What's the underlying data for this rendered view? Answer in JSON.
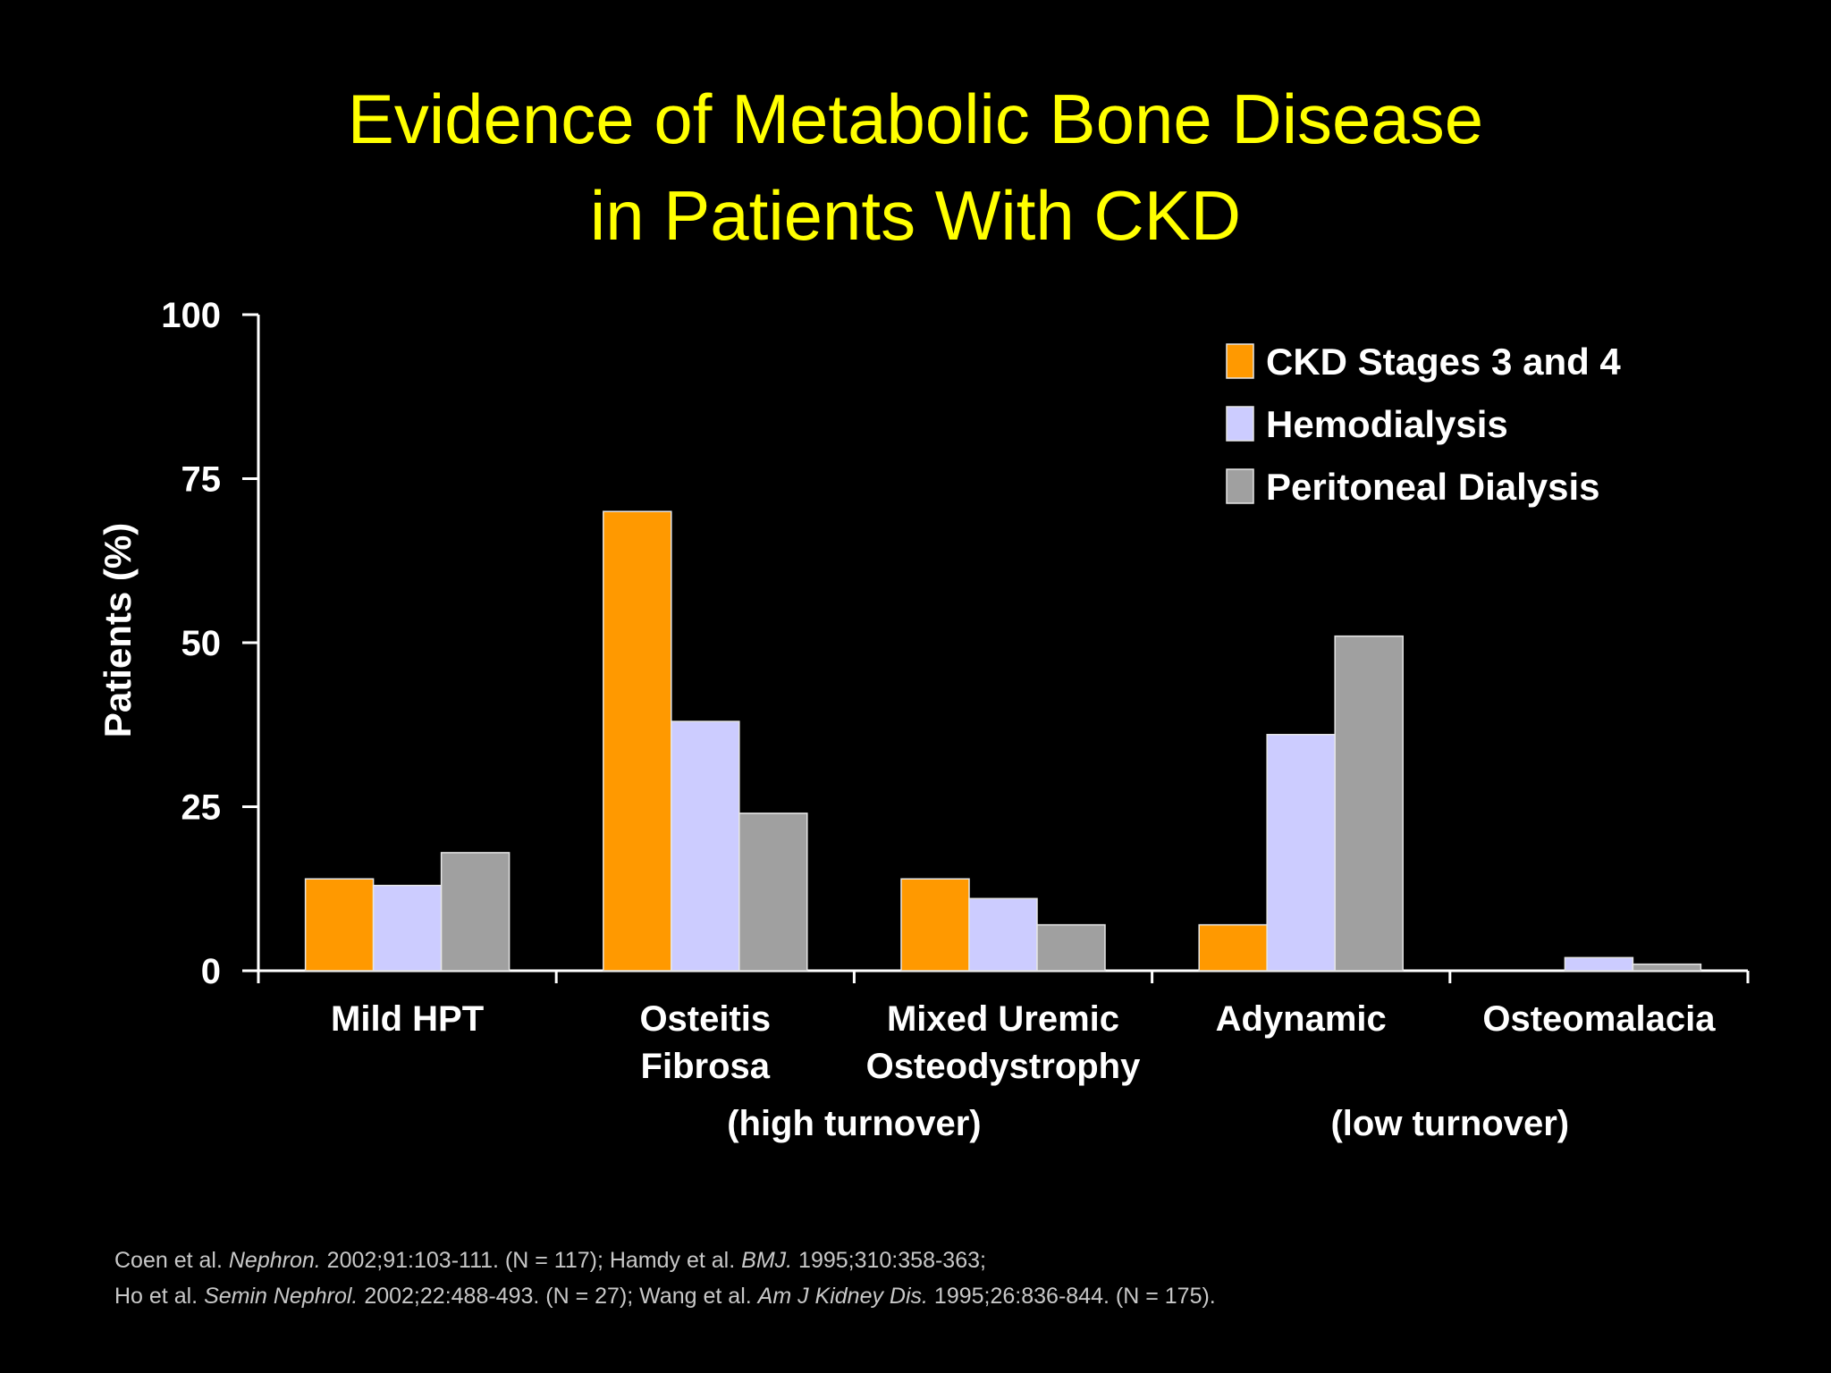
{
  "slide": {
    "title_line1": "Evidence of Metabolic Bone Disease",
    "title_line2": "in Patients With CKD"
  },
  "colors": {
    "background": "#000000",
    "title": "#ffff00",
    "axis": "#ffffff",
    "ckd": "#ff9900",
    "hemodialysis": "#ccccff",
    "peritoneal": "#a0a0a0"
  },
  "chart_data": {
    "type": "bar",
    "title": "Evidence of Metabolic Bone Disease in Patients With CKD",
    "xlabel": "",
    "ylabel": "Patients (%)",
    "ylim": [
      0,
      100
    ],
    "yticks": [
      0,
      25,
      50,
      75,
      100
    ],
    "grid": false,
    "legend_position": "top-right",
    "categories": [
      [
        "Mild HPT"
      ],
      [
        "Osteitis",
        "Fibrosa"
      ],
      [
        "Mixed Uremic",
        "Osteodystrophy"
      ],
      [
        "Adynamic"
      ],
      [
        "Osteomalacia"
      ]
    ],
    "group_annotations": [
      {
        "text": "(high turnover)",
        "spans": [
          1,
          2
        ]
      },
      {
        "text": "(low turnover)",
        "spans": [
          3,
          4
        ]
      }
    ],
    "series": [
      {
        "name": "CKD Stages 3 and 4",
        "color": "#ff9900",
        "values": [
          14,
          70,
          14,
          7,
          0
        ]
      },
      {
        "name": "Hemodialysis",
        "color": "#ccccff",
        "values": [
          13,
          38,
          11,
          36,
          2
        ]
      },
      {
        "name": "Peritoneal Dialysis",
        "color": "#a0a0a0",
        "values": [
          18,
          24,
          7,
          51,
          1
        ]
      }
    ]
  },
  "citation": {
    "line1": [
      {
        "text": "Coen et al. ",
        "italic": false
      },
      {
        "text": "Nephron.",
        "italic": true
      },
      {
        "text": " 2002;91:103-111. (N = 117); Hamdy et al. ",
        "italic": false
      },
      {
        "text": "BMJ.",
        "italic": true
      },
      {
        "text": " 1995;310:358-363;",
        "italic": false
      }
    ],
    "line2": [
      {
        "text": "Ho et al. ",
        "italic": false
      },
      {
        "text": "Semin Nephrol.",
        "italic": true
      },
      {
        "text": " 2002;22:488-493. (N = 27); Wang et al. ",
        "italic": false
      },
      {
        "text": "Am J Kidney Dis.",
        "italic": true
      },
      {
        "text": " 1995;26:836-844. (N = 175).",
        "italic": false
      }
    ]
  }
}
